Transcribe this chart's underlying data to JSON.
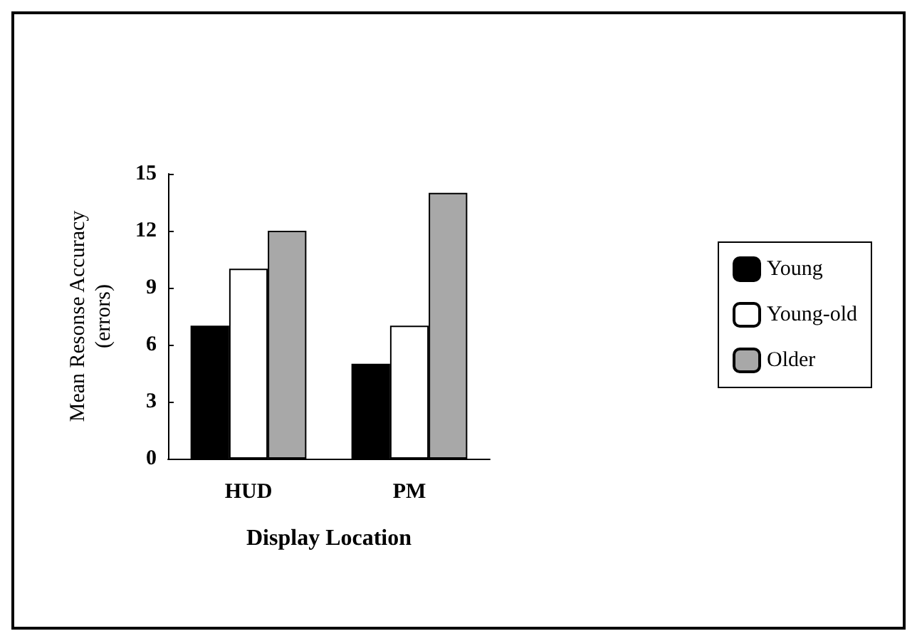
{
  "chart_data": {
    "type": "bar",
    "xlabel": "Display Location",
    "ylabel": "Mean Resonse Accuracy\n(errors)",
    "categories": [
      "HUD",
      "PM"
    ],
    "series": [
      {
        "name": "Young",
        "color": "#000000",
        "values": [
          7,
          5
        ]
      },
      {
        "name": "Young-old",
        "color": "#ffffff",
        "values": [
          10,
          7
        ]
      },
      {
        "name": "Older",
        "color": "#a8a8a8",
        "values": [
          12,
          14
        ]
      }
    ],
    "ylim": [
      0,
      15
    ],
    "yticks": [
      0,
      3,
      6,
      9,
      12,
      15
    ],
    "grid": false,
    "legend": "right"
  }
}
